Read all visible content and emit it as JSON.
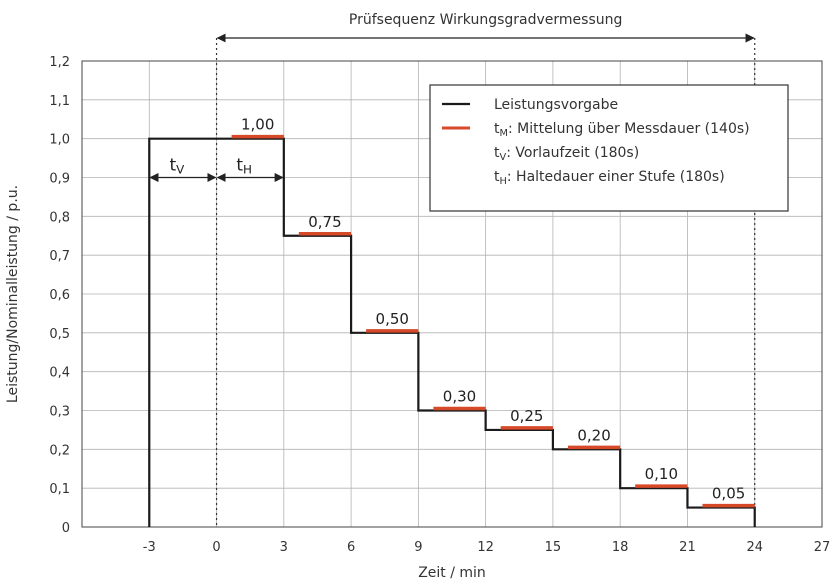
{
  "chart_data": {
    "type": "line",
    "title": "Prüfsequenz Wirkungsgradvermessung",
    "xlabel": "Zeit / min",
    "ylabel": "Leistung/Nominalleistung / p.u.",
    "xlim": [
      -6,
      27
    ],
    "ylim": [
      0,
      1.2
    ],
    "x_ticks": [
      -3,
      0,
      3,
      6,
      9,
      12,
      15,
      18,
      21,
      24,
      27
    ],
    "x_tick_labels": [
      "-3",
      "0",
      "3",
      "6",
      "9",
      "12",
      "15",
      "18",
      "21",
      "24",
      "27"
    ],
    "y_ticks": [
      0,
      0.1,
      0.2,
      0.3,
      0.4,
      0.5,
      0.6,
      0.7,
      0.8,
      0.9,
      1.0,
      1.1,
      1.2
    ],
    "y_tick_labels": [
      "0",
      "0,1",
      "0,2",
      "0,3",
      "0,4",
      "0,5",
      "0,6",
      "0,7",
      "0,8",
      "0,9",
      "1,0",
      "1,1",
      "1,2"
    ],
    "grid": true,
    "legend_position": "top-right",
    "colors": {
      "setpoint": "#1a1a1a",
      "measurement": "#d64a2a",
      "grid": "#999999"
    },
    "series": [
      {
        "name": "Leistungsvorgabe",
        "color": "#1a1a1a",
        "x": [
          -3,
          -3,
          3,
          3,
          6,
          6,
          9,
          9,
          12,
          12,
          15,
          15,
          18,
          18,
          21,
          21,
          24,
          24
        ],
        "y": [
          0,
          1.0,
          1.0,
          0.75,
          0.75,
          0.5,
          0.5,
          0.3,
          0.3,
          0.25,
          0.25,
          0.2,
          0.2,
          0.1,
          0.1,
          0.05,
          0.05,
          0
        ]
      },
      {
        "name": "t_M: Mittelung über Messdauer (140s)",
        "color": "#d64a2a",
        "segments": [
          {
            "x": [
              0.67,
              3
            ],
            "y": 1.0,
            "label": "1,00"
          },
          {
            "x": [
              3.67,
              6
            ],
            "y": 0.75,
            "label": "0,75"
          },
          {
            "x": [
              6.67,
              9
            ],
            "y": 0.5,
            "label": "0,50"
          },
          {
            "x": [
              9.67,
              12
            ],
            "y": 0.3,
            "label": "0,30"
          },
          {
            "x": [
              12.67,
              15
            ],
            "y": 0.25,
            "label": "0,25"
          },
          {
            "x": [
              15.67,
              18
            ],
            "y": 0.2,
            "label": "0,20"
          },
          {
            "x": [
              18.67,
              21
            ],
            "y": 0.1,
            "label": "0,10"
          },
          {
            "x": [
              21.67,
              24
            ],
            "y": 0.05,
            "label": "0,05"
          }
        ]
      }
    ],
    "legend": [
      {
        "sym": "line-black",
        "main": "Leistungsvorgabe",
        "sub": "",
        "rest": ""
      },
      {
        "sym": "line-red",
        "main": "t",
        "sub": "M",
        "rest": ": Mittelung über Messdauer (140s)"
      },
      {
        "sym": "none",
        "main": "t",
        "sub": "V",
        "rest": ": Vorlaufzeit (180s)"
      },
      {
        "sym": "none",
        "main": "t",
        "sub": "H",
        "rest": ": Haltedauer einer Stufe (180s)"
      }
    ],
    "annotations": [
      {
        "main": "t",
        "sub": "V",
        "x_from": -3,
        "x_to": 0,
        "y": 0.9
      },
      {
        "main": "t",
        "sub": "H",
        "x_from": 0,
        "x_to": 3,
        "y": 0.9
      }
    ],
    "dotted_lines": [
      0,
      24
    ],
    "sequence_arrow": {
      "x_from": 0,
      "x_to": 24
    }
  }
}
